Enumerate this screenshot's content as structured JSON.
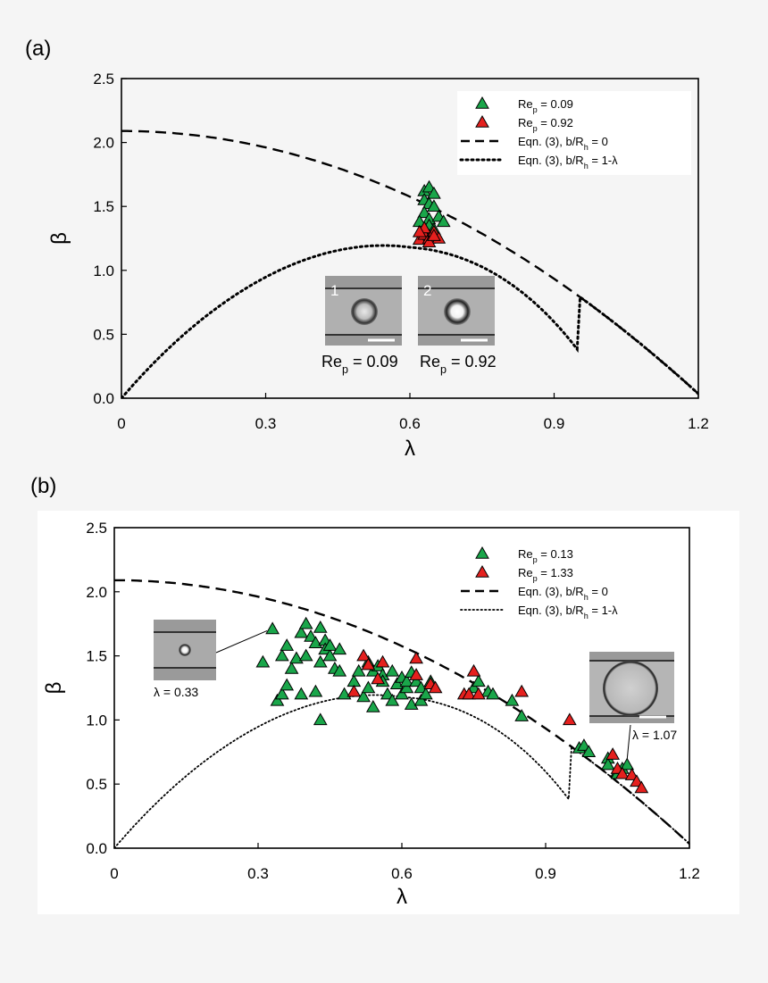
{
  "chart_data": [
    {
      "panel_label": "(a)",
      "type": "scatter",
      "xlabel": "λ",
      "ylabel": "β",
      "xlim": [
        0,
        1.2
      ],
      "ylim": [
        0,
        2.5
      ],
      "xticks": [
        "0",
        "0.3",
        "0.6",
        "0.9",
        "1.2"
      ],
      "yticks": [
        "0.0",
        "0.5",
        "1.0",
        "1.5",
        "2.0",
        "2.5"
      ],
      "grid": false,
      "legend_position": "top-right",
      "series": [
        {
          "name": "Re_p = 0.09",
          "color": "#1aa64a",
          "marker": "triangle",
          "points": [
            [
              0.63,
              1.62
            ],
            [
              0.64,
              1.65
            ],
            [
              0.65,
              1.6
            ],
            [
              0.63,
              1.55
            ],
            [
              0.64,
              1.52
            ],
            [
              0.65,
              1.5
            ],
            [
              0.63,
              1.45
            ],
            [
              0.64,
              1.4
            ],
            [
              0.66,
              1.42
            ],
            [
              0.62,
              1.38
            ],
            [
              0.64,
              1.35
            ],
            [
              0.67,
              1.38
            ],
            [
              0.63,
              1.3
            ],
            [
              0.65,
              1.32
            ],
            [
              0.64,
              1.27
            ]
          ]
        },
        {
          "name": "Re_p = 0.92",
          "color": "#e5201e",
          "marker": "triangle",
          "points": [
            [
              0.62,
              1.24
            ],
            [
              0.63,
              1.28
            ],
            [
              0.64,
              1.25
            ],
            [
              0.65,
              1.3
            ],
            [
              0.66,
              1.25
            ],
            [
              0.63,
              1.33
            ],
            [
              0.64,
              1.22
            ],
            [
              0.62,
              1.3
            ],
            [
              0.65,
              1.27
            ]
          ]
        }
      ],
      "curves": [
        {
          "name": "Eqn. (3), b/R_h = 0",
          "style": "dashed",
          "weight": "heavy"
        },
        {
          "name": "Eqn. (3), b/R_h = 1-λ",
          "style": "dotted",
          "weight": "heavy"
        }
      ],
      "legend": [
        {
          "label": "Re",
          "sub": "p",
          "rest": " = 0.09",
          "kind": "triangle",
          "color": "#1aa64a"
        },
        {
          "label": "Re",
          "sub": "p",
          "rest": " = 0.92",
          "kind": "triangle",
          "color": "#e5201e"
        },
        {
          "label": "Eqn. (3), b/R",
          "sub": "h",
          "rest": " = 0",
          "kind": "dashed"
        },
        {
          "label": "Eqn. (3), b/R",
          "sub": "h",
          "rest": " = 1-λ",
          "kind": "dotted"
        }
      ],
      "insets": [
        {
          "number": "1",
          "caption": "Re",
          "sub": "p",
          "rest": " = 0.09",
          "bubble": "small"
        },
        {
          "number": "2",
          "caption": "Re",
          "sub": "p",
          "rest": " = 0.92",
          "bubble": "small-bright"
        }
      ]
    },
    {
      "panel_label": "(b)",
      "type": "scatter",
      "xlabel": "λ",
      "ylabel": "β",
      "xlim": [
        0,
        1.2
      ],
      "ylim": [
        0,
        2.5
      ],
      "xticks": [
        "0",
        "0.3",
        "0.6",
        "0.9",
        "1.2"
      ],
      "yticks": [
        "0.0",
        "0.5",
        "1.0",
        "1.5",
        "2.0",
        "2.5"
      ],
      "grid": false,
      "legend_position": "top-right",
      "series": [
        {
          "name": "Re_p = 0.13",
          "color": "#1aa64a",
          "marker": "triangle",
          "points": [
            [
              0.31,
              1.45
            ],
            [
              0.33,
              1.71
            ],
            [
              0.34,
              1.15
            ],
            [
              0.35,
              1.2
            ],
            [
              0.35,
              1.5
            ],
            [
              0.36,
              1.58
            ],
            [
              0.36,
              1.27
            ],
            [
              0.37,
              1.4
            ],
            [
              0.38,
              1.48
            ],
            [
              0.39,
              1.68
            ],
            [
              0.39,
              1.2
            ],
            [
              0.4,
              1.75
            ],
            [
              0.4,
              1.5
            ],
            [
              0.41,
              1.65
            ],
            [
              0.42,
              1.6
            ],
            [
              0.42,
              1.22
            ],
            [
              0.43,
              1.72
            ],
            [
              0.43,
              1.45
            ],
            [
              0.43,
              1.0
            ],
            [
              0.44,
              1.62
            ],
            [
              0.44,
              1.55
            ],
            [
              0.45,
              1.5
            ],
            [
              0.45,
              1.58
            ],
            [
              0.46,
              1.4
            ],
            [
              0.47,
              1.55
            ],
            [
              0.47,
              1.38
            ],
            [
              0.48,
              1.2
            ],
            [
              0.5,
              1.3
            ],
            [
              0.51,
              1.38
            ],
            [
              0.52,
              1.18
            ],
            [
              0.53,
              1.25
            ],
            [
              0.53,
              1.45
            ],
            [
              0.54,
              1.38
            ],
            [
              0.54,
              1.1
            ],
            [
              0.55,
              1.42
            ],
            [
              0.56,
              1.35
            ],
            [
              0.56,
              1.3
            ],
            [
              0.57,
              1.2
            ],
            [
              0.58,
              1.38
            ],
            [
              0.58,
              1.15
            ],
            [
              0.59,
              1.28
            ],
            [
              0.6,
              1.33
            ],
            [
              0.6,
              1.2
            ],
            [
              0.61,
              1.25
            ],
            [
              0.61,
              1.3
            ],
            [
              0.62,
              1.12
            ],
            [
              0.62,
              1.37
            ],
            [
              0.63,
              1.3
            ],
            [
              0.64,
              1.25
            ],
            [
              0.64,
              1.15
            ],
            [
              0.65,
              1.2
            ],
            [
              0.66,
              1.3
            ],
            [
              0.75,
              1.25
            ],
            [
              0.76,
              1.3
            ],
            [
              0.78,
              1.22
            ],
            [
              0.79,
              1.2
            ],
            [
              0.83,
              1.15
            ],
            [
              0.85,
              1.03
            ],
            [
              0.97,
              0.78
            ],
            [
              0.98,
              0.8
            ],
            [
              0.99,
              0.75
            ],
            [
              1.03,
              0.7
            ],
            [
              1.03,
              0.65
            ],
            [
              1.05,
              0.6
            ],
            [
              1.05,
              0.58
            ],
            [
              1.06,
              0.62
            ],
            [
              1.07,
              0.65
            ]
          ]
        },
        {
          "name": "Re_p = 1.33",
          "color": "#e5201e",
          "marker": "triangle",
          "points": [
            [
              0.5,
              1.22
            ],
            [
              0.52,
              1.5
            ],
            [
              0.53,
              1.43
            ],
            [
              0.55,
              1.32
            ],
            [
              0.56,
              1.45
            ],
            [
              0.63,
              1.48
            ],
            [
              0.63,
              1.35
            ],
            [
              0.66,
              1.28
            ],
            [
              0.67,
              1.25
            ],
            [
              0.73,
              1.2
            ],
            [
              0.74,
              1.2
            ],
            [
              0.75,
              1.38
            ],
            [
              0.76,
              1.2
            ],
            [
              0.85,
              1.22
            ],
            [
              0.95,
              1.0
            ],
            [
              1.04,
              0.73
            ],
            [
              1.05,
              0.62
            ],
            [
              1.06,
              0.58
            ],
            [
              1.08,
              0.57
            ],
            [
              1.09,
              0.52
            ],
            [
              1.1,
              0.47
            ]
          ]
        }
      ],
      "curves": [
        {
          "name": "Eqn. (3), b/R_h = 0",
          "style": "dashed",
          "weight": "heavy"
        },
        {
          "name": "Eqn. (3), b/R_h = 1-λ",
          "style": "dotted",
          "weight": "light"
        }
      ],
      "legend": [
        {
          "label": "Re",
          "sub": "p",
          "rest": " = 0.13",
          "kind": "triangle",
          "color": "#1aa64a"
        },
        {
          "label": "Re",
          "sub": "p",
          "rest": " = 1.33",
          "kind": "triangle",
          "color": "#e5201e"
        },
        {
          "label": "Eqn. (3), b/R",
          "sub": "h",
          "rest": " = 0",
          "kind": "dashed"
        },
        {
          "label": "Eqn. (3), b/R",
          "sub": "h",
          "rest": " = 1-λ",
          "kind": "dotted"
        }
      ],
      "insets": [
        {
          "caption": "λ = 0.33",
          "bubble": "small",
          "pointer": [
            0.33,
            1.71
          ]
        },
        {
          "caption": "λ = 1.07",
          "bubble": "large",
          "pointer": [
            1.07,
            0.65
          ]
        }
      ]
    }
  ]
}
